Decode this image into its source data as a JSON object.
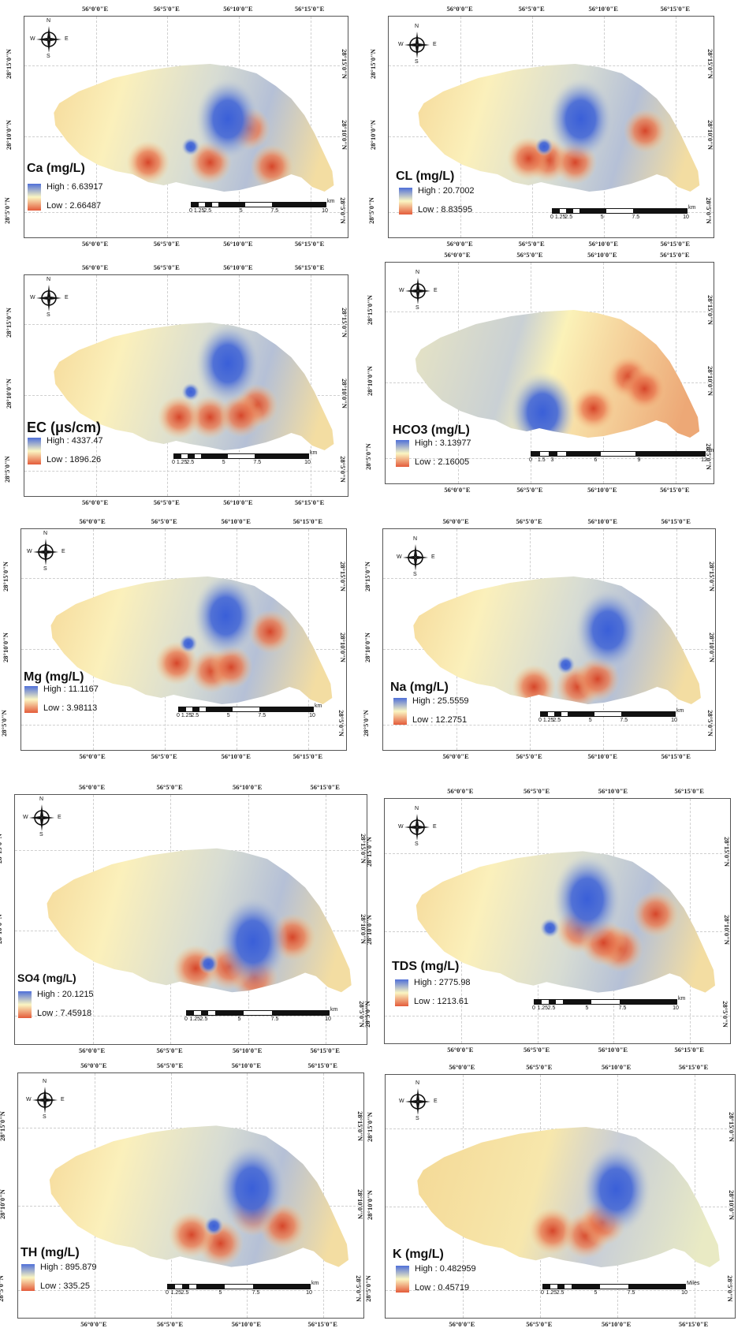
{
  "colors": {
    "high": "#4f6fd8",
    "mid": "#fbf6c2",
    "low": "#e45b3a",
    "hot": "#d9482b",
    "cool": "#3f63d8"
  },
  "lon_labels": [
    "56°0'0\"E",
    "56°5'0\"E",
    "56°10'0\"E",
    "56°15'0\"E"
  ],
  "lat_labels": [
    "28°15'0\"N",
    "28°10'0\"N",
    "28°5'0\"N"
  ],
  "compass_labels": {
    "n": "N",
    "s": "S",
    "e": "E",
    "w": "W"
  },
  "maps": [
    {
      "title": "Ca (mg/L)",
      "high_label": "High : 6.63917",
      "low_label": "Low : 2.66487",
      "scale_ticks": [
        "0",
        "1.25",
        "2.5",
        "5",
        "7.5",
        "10"
      ],
      "scale_unit": "km"
    },
    {
      "title": "CL (mg/L)",
      "high_label": "High : 20.7002",
      "low_label": "Low : 8.83595",
      "scale_ticks": [
        "0",
        "1.25",
        "2.5",
        "5",
        "7.5",
        "10"
      ],
      "scale_unit": "km"
    },
    {
      "title": "EC (μs/cm)",
      "high_label": "High : 4337.47",
      "low_label": "Low : 1896.26",
      "scale_ticks": [
        "0",
        "1.25",
        "2.5",
        "5",
        "7.5",
        "10"
      ],
      "scale_unit": "km"
    },
    {
      "title": "HCO3 (mg/L)",
      "high_label": "High : 3.13977",
      "low_label": "Low : 2.16005",
      "scale_ticks": [
        "0",
        "1.5",
        "3",
        "6",
        "9",
        "12"
      ],
      "scale_unit": "km"
    },
    {
      "title": "Mg (mg/L)",
      "high_label": "High : 11.1167",
      "low_label": "Low : 3.98113",
      "scale_ticks": [
        "0",
        "1.25",
        "2.5",
        "5",
        "7.5",
        "10"
      ],
      "scale_unit": "km"
    },
    {
      "title": "Na (mg/L)",
      "high_label": "High : 25.5559",
      "low_label": "Low : 12.2751",
      "scale_ticks": [
        "0",
        "1.25",
        "2.5",
        "5",
        "7.5",
        "10"
      ],
      "scale_unit": "km"
    },
    {
      "title": "SO4 (mg/L)",
      "high_label": "High : 20.1215",
      "low_label": "Low : 7.45918",
      "scale_ticks": [
        "0",
        "1.25",
        "2.5",
        "5",
        "7.5",
        "10"
      ],
      "scale_unit": "km"
    },
    {
      "title": "TDS (mg/L)",
      "high_label": "High : 2775.98",
      "low_label": "Low : 1213.61",
      "scale_ticks": [
        "0",
        "1.25",
        "2.5",
        "5",
        "7.5",
        "10"
      ],
      "scale_unit": "km"
    },
    {
      "title": "TH (mg/L)",
      "high_label": "High : 895.879",
      "low_label": "Low : 335.25",
      "scale_ticks": [
        "0",
        "1.25",
        "2.5",
        "5",
        "7.5",
        "10"
      ],
      "scale_unit": "km"
    },
    {
      "title": "K (mg/L)",
      "high_label": "High : 0.482959",
      "low_label": "Low : 0.45719",
      "scale_ticks": [
        "0",
        "1.25",
        "2.5",
        "5",
        "7.5",
        "10"
      ],
      "scale_unit": "Miles"
    }
  ]
}
